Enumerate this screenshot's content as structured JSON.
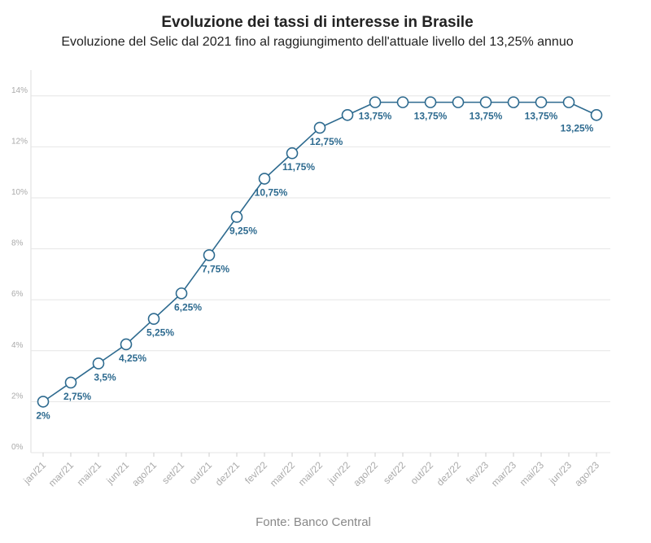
{
  "chart_data": {
    "type": "line",
    "title": "Evoluzione dei tassi di interesse in Brasile",
    "subtitle": "Evoluzione del Selic dal 2021 fino al raggiungimento dell'attuale livello del 13,25% annuo",
    "source": "Fonte: Banco Central",
    "xlabel": "",
    "ylabel": "",
    "ylim": [
      0,
      14
    ],
    "yticks": [
      "0%",
      "2%",
      "4%",
      "6%",
      "8%",
      "10%",
      "12%",
      "14%"
    ],
    "grid": true,
    "legend": "none",
    "categories": [
      "jan/21",
      "mar/21",
      "mai/21",
      "jun/21",
      "ago/21",
      "set/21",
      "out/21",
      "dez/21",
      "fev/22",
      "mar/22",
      "mai/22",
      "jun/22",
      "ago/22",
      "set/22",
      "out/22",
      "dez/22",
      "fev/23",
      "mar/23",
      "mai/23",
      "jun/23",
      "ago/23"
    ],
    "series": [
      {
        "values": [
          2,
          2.75,
          3.5,
          4.25,
          5.25,
          6.25,
          7.75,
          9.25,
          10.75,
          11.75,
          12.75,
          13.25,
          13.75,
          13.75,
          13.75,
          13.75,
          13.75,
          13.75,
          13.75,
          13.75,
          13.25
        ],
        "color": "#2d6a8f"
      }
    ],
    "data_labels": [
      {
        "index": 0,
        "text": "2%"
      },
      {
        "index": 1,
        "text": "2,75%"
      },
      {
        "index": 2,
        "text": "3,5%"
      },
      {
        "index": 3,
        "text": "4,25%"
      },
      {
        "index": 4,
        "text": "5,25%"
      },
      {
        "index": 5,
        "text": "6,25%"
      },
      {
        "index": 6,
        "text": "7,75%"
      },
      {
        "index": 7,
        "text": "9,25%"
      },
      {
        "index": 8,
        "text": "10,75%"
      },
      {
        "index": 9,
        "text": "11,75%"
      },
      {
        "index": 10,
        "text": "12,75%"
      },
      {
        "index": 12,
        "text": "13,75%"
      },
      {
        "index": 14,
        "text": "13,75%"
      },
      {
        "index": 16,
        "text": "13,75%"
      },
      {
        "index": 18,
        "text": "13,75%"
      },
      {
        "index": 20,
        "text": "13,25%"
      }
    ]
  }
}
